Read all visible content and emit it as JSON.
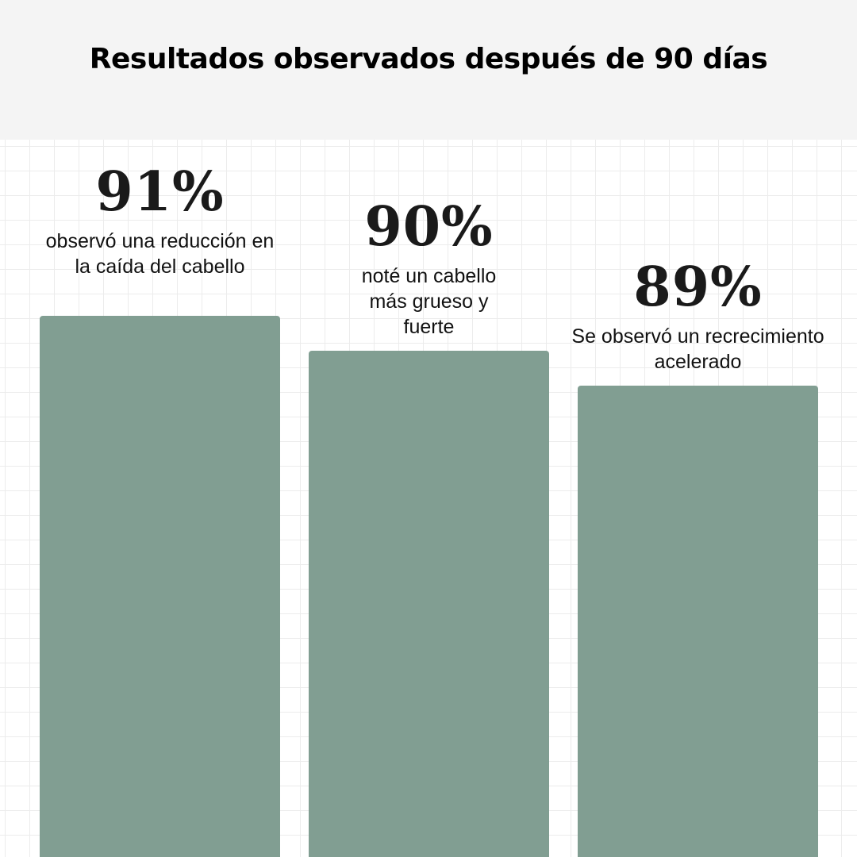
{
  "chart_data": {
    "type": "bar",
    "title": "Resultados observados después de 90 días",
    "categories": [
      "observó una reducción en la caída del cabello",
      "noté un cabello más grueso y fuerte",
      "Se observó un recrecimiento acelerado"
    ],
    "values": [
      91,
      90,
      89
    ],
    "value_labels": [
      "91%",
      "90%",
      "89%"
    ],
    "unit": "%",
    "colors": {
      "bar": "#819e92",
      "header_bg": "#f4f4f4"
    },
    "grid": true,
    "axes_visible": false
  }
}
